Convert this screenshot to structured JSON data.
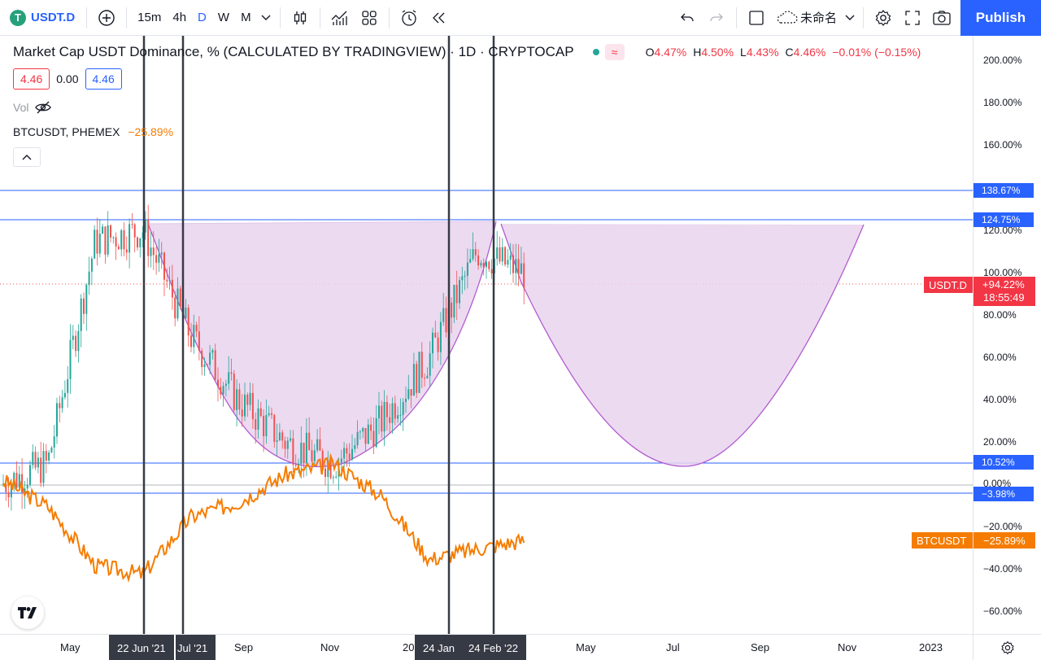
{
  "toolbar": {
    "symbol": "USDT.D",
    "timeframes": [
      "15m",
      "4h",
      "D",
      "W",
      "M"
    ],
    "active_timeframe": "D",
    "layout_name": "未命名",
    "publish_label": "Publish"
  },
  "legend": {
    "title": "Market Cap USDT Dominance, % (CALCULATED BY TRADINGVIEW) · 1D · CRYPTOCAP",
    "ohlc": [
      {
        "k": "O",
        "v": "4.47%"
      },
      {
        "k": "H",
        "v": "4.50%"
      },
      {
        "k": "L",
        "v": "4.43%"
      },
      {
        "k": "C",
        "v": "4.46%"
      }
    ],
    "change": "−0.01% (−0.15%)",
    "bid": "4.46",
    "spread": "0.00",
    "ask": "4.46",
    "vol_label": "Vol",
    "btc_label": "BTCUSDT, PHEMEX",
    "btc_change": "−25.89%"
  },
  "price_axis": {
    "ticks": [
      "200.00%",
      "180.00%",
      "160.00%",
      "120.00%",
      "100.00%",
      "80.00%",
      "60.00%",
      "40.00%",
      "20.00%",
      "0.00%",
      "−20.00%",
      "−40.00%",
      "−60.00%"
    ],
    "labels": {
      "h1": "138.67%",
      "h2": "124.75%",
      "h3": "10.52%",
      "h4": "−3.98%",
      "usdt_name": "USDT.D",
      "usdt_val": "+94.22%",
      "usdt_timer": "18:55:49",
      "btc_name": "BTCUSDT",
      "btc_val": "−25.89%"
    }
  },
  "time_axis": {
    "ticks": [
      "May",
      "Sep",
      "Nov",
      "20",
      "May",
      "Jul",
      "Sep",
      "Nov",
      "2023"
    ],
    "markers": [
      "22 Jun '21",
      "Jul '21",
      "24 Jan",
      "24 Feb '22"
    ]
  },
  "colors": {
    "accent": "#2962ff",
    "up": "#26a69a",
    "down": "#ef5350",
    "btc": "#f57c00",
    "cup_fill": "#e9d3ef",
    "cup_stroke": "#b25ccf",
    "hline": "#2962ff"
  },
  "chart_data": {
    "type": "line",
    "x": [
      "2021-04",
      "2021-05",
      "2021-06",
      "2021-07",
      "2021-08",
      "2021-09",
      "2021-10",
      "2021-11",
      "2021-12",
      "2022-01",
      "2022-02",
      "2022-03"
    ],
    "series": [
      {
        "name": "USDT.D",
        "values": [
          0,
          10,
          115,
          120,
          70,
          40,
          20,
          10,
          30,
          60,
          110,
          100
        ]
      },
      {
        "name": "BTCUSDT",
        "values": [
          3,
          -10,
          -38,
          -42,
          -15,
          -8,
          5,
          10,
          -5,
          -35,
          -30,
          -26
        ]
      }
    ],
    "ylim": [
      -65,
      210
    ],
    "hlines": [
      138.67,
      124.75,
      10.52,
      -3.98
    ]
  }
}
